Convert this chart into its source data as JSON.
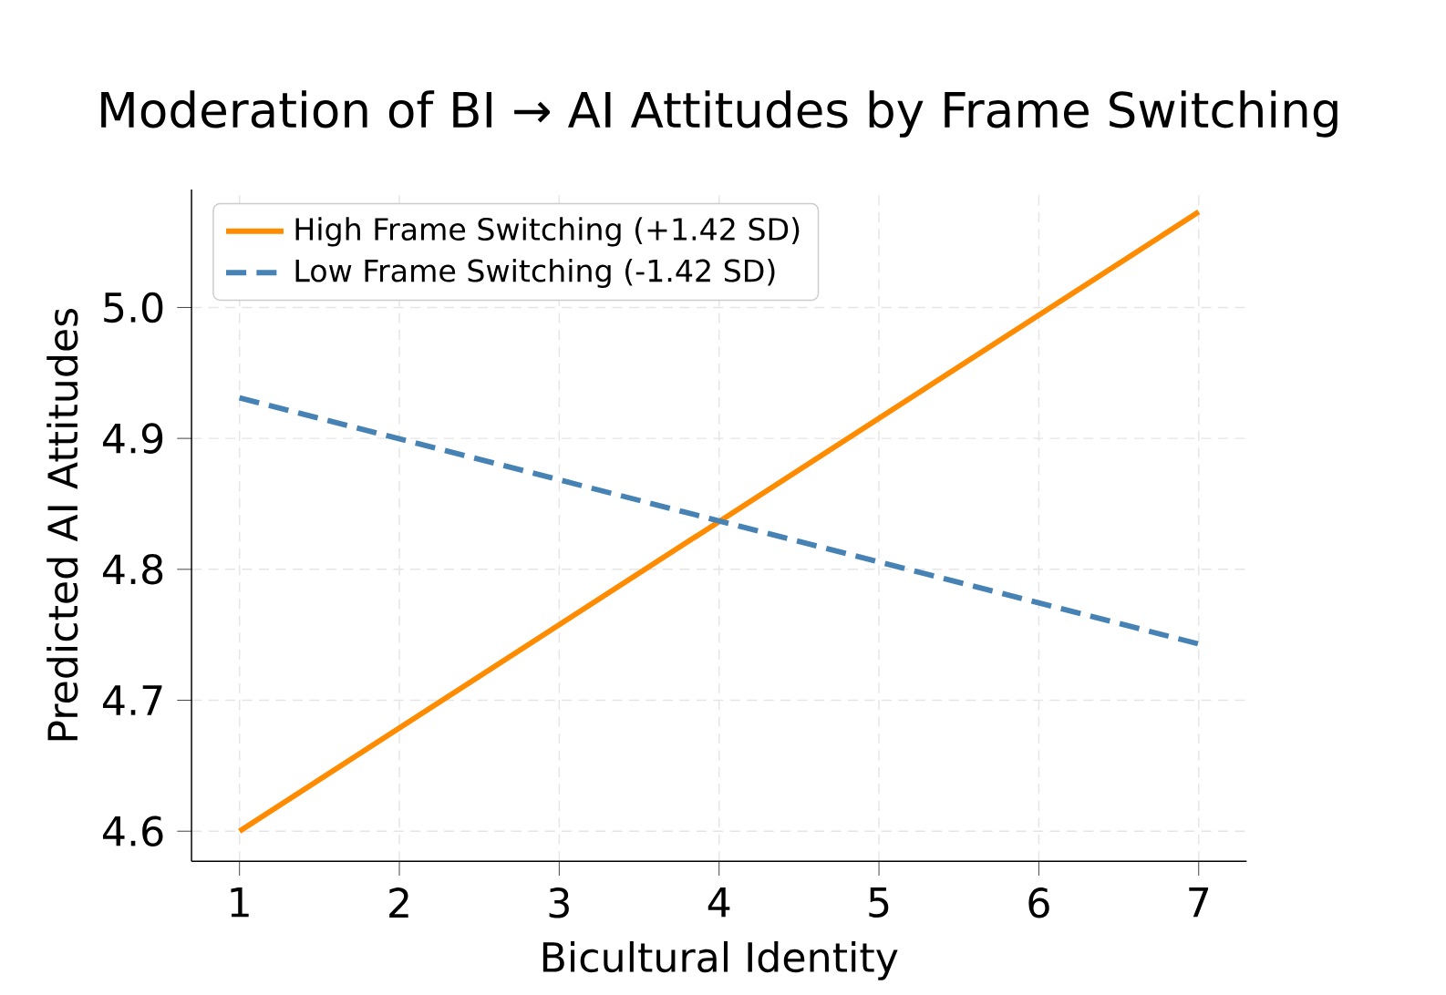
{
  "chart_data": {
    "type": "line",
    "title": "Moderation of BI → AI Attitudes by Frame Switching",
    "xlabel": "Bicultural Identity",
    "ylabel": "Predicted AI Attitudes",
    "x": [
      1,
      7
    ],
    "series": [
      {
        "name": "High Frame Switching (+1.42 SD)",
        "color": "#ff8c00",
        "values": [
          4.6,
          5.073
        ],
        "line_style": "solid"
      },
      {
        "name": "Low Frame Switching (-1.42 SD)",
        "color": "#4682b4",
        "values": [
          4.931,
          4.743
        ],
        "line_style": "dashed"
      }
    ],
    "xlim": [
      0.7,
      7.3
    ],
    "ylim": [
      4.577,
      5.09
    ],
    "xticks": [
      1,
      2,
      3,
      4,
      5,
      6,
      7
    ],
    "yticks": [
      4.6,
      4.7,
      4.8,
      4.9,
      {
        "value": 5.0,
        "label": "5.0"
      }
    ],
    "grid": true,
    "legend": "top left",
    "marker": "none"
  }
}
